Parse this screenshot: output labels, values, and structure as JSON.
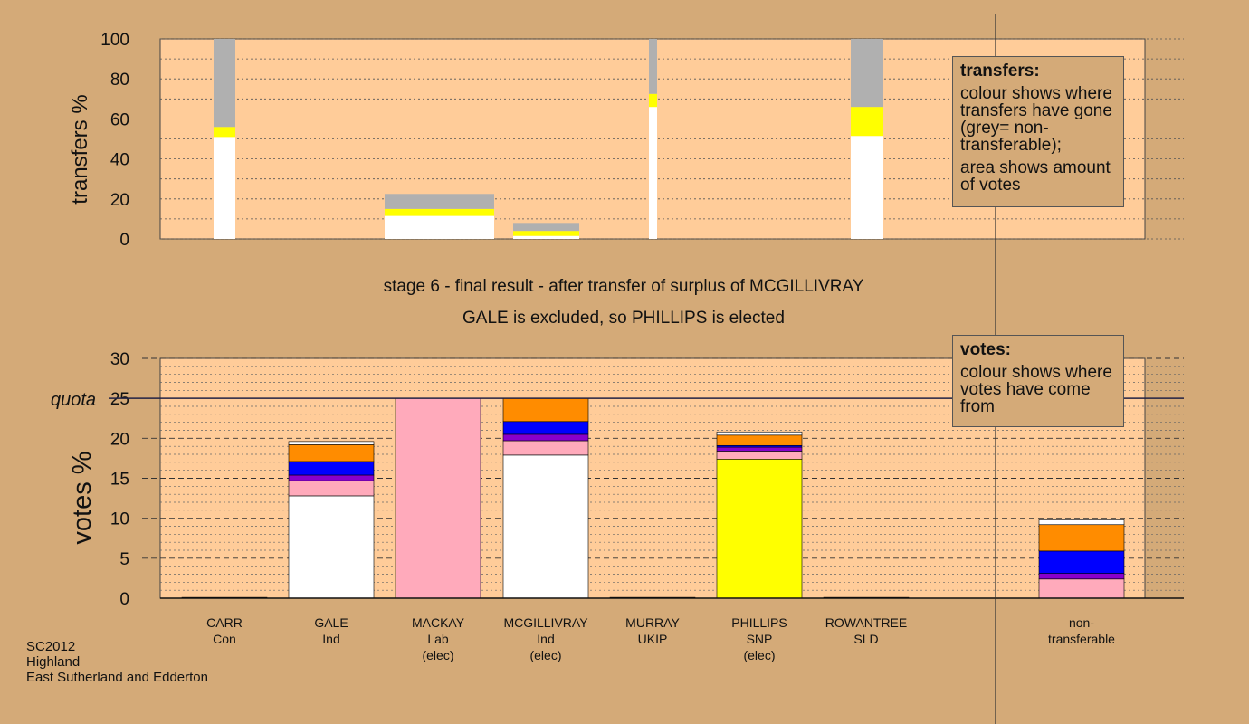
{
  "chart_data": [
    {
      "type": "bar",
      "stacked": true,
      "ylabel": "transfers %",
      "ylim": [
        0,
        100
      ],
      "yticks": [
        0,
        20,
        40,
        60,
        80,
        100
      ],
      "grid": "dotted horizontal every 10",
      "bars": [
        {
          "candidate": "CARR",
          "segments": [
            {
              "color": "#ffffff",
              "value": 51
            },
            {
              "color": "#ffff00",
              "value": 5
            },
            {
              "color": "#b0b0b0",
              "value": 44
            }
          ]
        },
        {
          "candidate": "MACKAY",
          "segments": [
            {
              "color": "#ffffff",
              "value": 11.5
            },
            {
              "color": "#ffff00",
              "value": 3.5
            },
            {
              "color": "#b0b0b0",
              "value": 7.5
            }
          ]
        },
        {
          "candidate": "MCGILLIVRAY",
          "segments": [
            {
              "color": "#ffffff",
              "value": 1.5
            },
            {
              "color": "#ffff00",
              "value": 2.5
            },
            {
              "color": "#b0b0b0",
              "value": 4
            }
          ]
        },
        {
          "candidate": "MURRAY",
          "segments": [
            {
              "color": "#ffffff",
              "value": 66
            },
            {
              "color": "#ffff00",
              "value": 6.5
            },
            {
              "color": "#b0b0b0",
              "value": 27.5
            }
          ]
        },
        {
          "candidate": "ROWANTREE",
          "segments": [
            {
              "color": "#ffffff",
              "value": 51.5
            },
            {
              "color": "#ffff00",
              "value": 14.5
            },
            {
              "color": "#b0b0b0",
              "value": 34
            }
          ]
        }
      ]
    },
    {
      "type": "bar",
      "stacked": true,
      "ylabel": "votes %",
      "ylim": [
        0,
        30
      ],
      "yticks": [
        0,
        5,
        10,
        15,
        20,
        25,
        30
      ],
      "quota": 25,
      "quota_label": "quota",
      "grid": "dashed every 5, dotted every 1",
      "categories": [
        {
          "name": "CARR",
          "party": "Con",
          "status": "",
          "segments": [
            {
              "color": "#111111",
              "value": 0.1
            }
          ]
        },
        {
          "name": "GALE",
          "party": "Ind",
          "status": "",
          "segments": [
            {
              "color": "#ffffff",
              "value": 12.8
            },
            {
              "color": "#ffaabb",
              "value": 1.9
            },
            {
              "color": "#8800cc",
              "value": 0.7
            },
            {
              "color": "#0000ff",
              "value": 1.7
            },
            {
              "color": "#ff8c00",
              "value": 2.1
            },
            {
              "color": "#ffffff",
              "value": 0.4
            }
          ]
        },
        {
          "name": "MACKAY",
          "party": "Lab",
          "status": "(elec)",
          "segments": [
            {
              "color": "#ffaabb",
              "value": 25
            }
          ]
        },
        {
          "name": "MCGILLIVRAY",
          "party": "Ind",
          "status": "(elec)",
          "segments": [
            {
              "color": "#ffffff",
              "value": 17.9
            },
            {
              "color": "#ffaabb",
              "value": 1.8
            },
            {
              "color": "#8800cc",
              "value": 0.8
            },
            {
              "color": "#0000ff",
              "value": 1.6
            },
            {
              "color": "#ff8c00",
              "value": 2.9
            }
          ]
        },
        {
          "name": "MURRAY",
          "party": "UKIP",
          "status": "",
          "segments": [
            {
              "color": "#111111",
              "value": 0.1
            }
          ]
        },
        {
          "name": "PHILLIPS",
          "party": "SNP",
          "status": "(elec)",
          "segments": [
            {
              "color": "#ffff00",
              "value": 17.4
            },
            {
              "color": "#ffaabb",
              "value": 1.0
            },
            {
              "color": "#8800cc",
              "value": 0.5
            },
            {
              "color": "#0000ff",
              "value": 0.2
            },
            {
              "color": "#ff8c00",
              "value": 1.3
            },
            {
              "color": "#ffffff",
              "value": 0.4
            }
          ]
        },
        {
          "name": "ROWANTREE",
          "party": "SLD",
          "status": "",
          "segments": [
            {
              "color": "#111111",
              "value": 0.1
            }
          ]
        },
        {
          "name": "non-",
          "party": "transferable",
          "status": "",
          "segments": [
            {
              "color": "#ffaabb",
              "value": 2.4
            },
            {
              "color": "#8800cc",
              "value": 0.7
            },
            {
              "color": "#0000ff",
              "value": 2.8
            },
            {
              "color": "#ff8c00",
              "value": 3.3
            },
            {
              "color": "#ffffff",
              "value": 0.6
            }
          ]
        }
      ]
    }
  ],
  "caption": {
    "line1": "stage 6 - final result - after transfer of surplus of MCGILLIVRAY",
    "line2": "GALE is excluded, so PHILLIPS is elected"
  },
  "legend_transfers": {
    "title": "transfers:",
    "line1": "colour shows where transfers have gone (grey= non-transferable);",
    "line2": "area shows amount of votes"
  },
  "legend_votes": {
    "title": "votes:",
    "line1": "colour shows where votes have come from"
  },
  "footer": {
    "line1": "SC2012",
    "line2": "Highland",
    "line3": "East Sutherland and Edderton"
  },
  "colors": {
    "background": "#d4aa78",
    "plot_area": "#ffcc99"
  }
}
